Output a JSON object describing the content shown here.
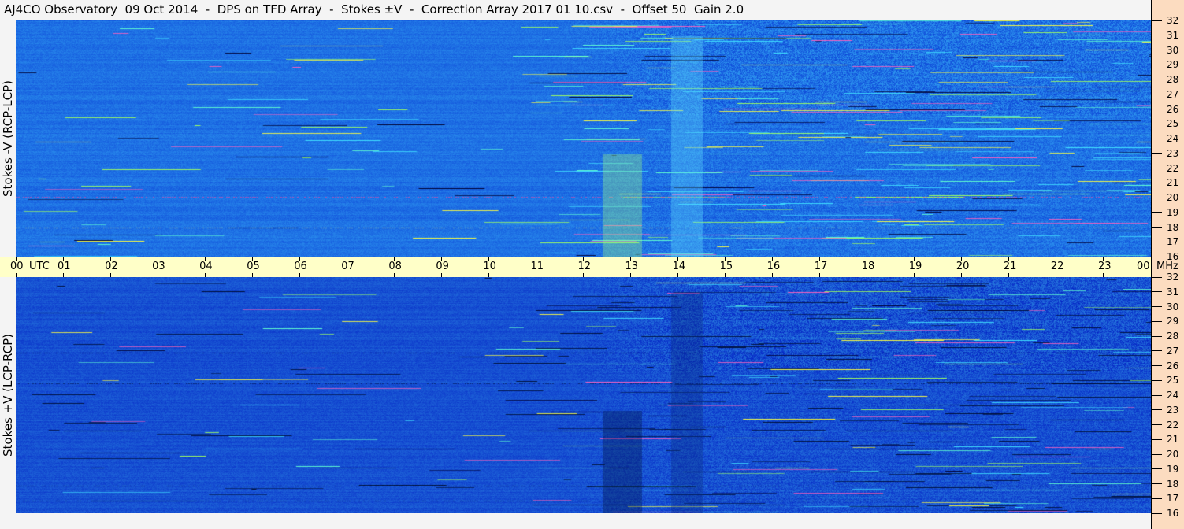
{
  "title": "AJ4CO Observatory  09 Oct 2014  -  DPS on TFD Array  -  Stokes ±V  -  Correction Array 2017 01 10.csv  -  Offset 50  Gain 2.0",
  "chart_data": [
    {
      "type": "heatmap",
      "ylabel": "Stokes -V (RCP-LCP)",
      "y_unit": "MHz",
      "ylim": [
        16,
        32
      ],
      "y_ticks": [
        "32",
        "31",
        "30",
        "29",
        "28",
        "27",
        "26",
        "25",
        "24",
        "23",
        "22",
        "21",
        "20",
        "19",
        "18",
        "17",
        "16"
      ],
      "x_unit": "UTC",
      "x_ticks": [
        "00",
        "01",
        "02",
        "03",
        "04",
        "05",
        "06",
        "07",
        "08",
        "09",
        "10",
        "11",
        "12",
        "13",
        "14",
        "15",
        "16",
        "17",
        "18",
        "19",
        "20",
        "21",
        "22",
        "23",
        "00"
      ],
      "base_color": "#1e70e6"
    },
    {
      "type": "heatmap",
      "ylabel": "Stokes +V (LCP-RCP)",
      "y_unit": "MHz",
      "ylim": [
        16,
        32
      ],
      "y_ticks": [
        "32",
        "31",
        "30",
        "29",
        "28",
        "27",
        "26",
        "25",
        "24",
        "23",
        "22",
        "21",
        "20",
        "19",
        "18",
        "17",
        "16"
      ],
      "base_color": "#1650d2"
    }
  ],
  "axis": {
    "utc_label": "UTC",
    "mhz_label": "MHz"
  },
  "colors": {
    "time_band": "#ffffc8",
    "freq_panel": "#fcdcc0",
    "background": "#f4f4f4"
  }
}
